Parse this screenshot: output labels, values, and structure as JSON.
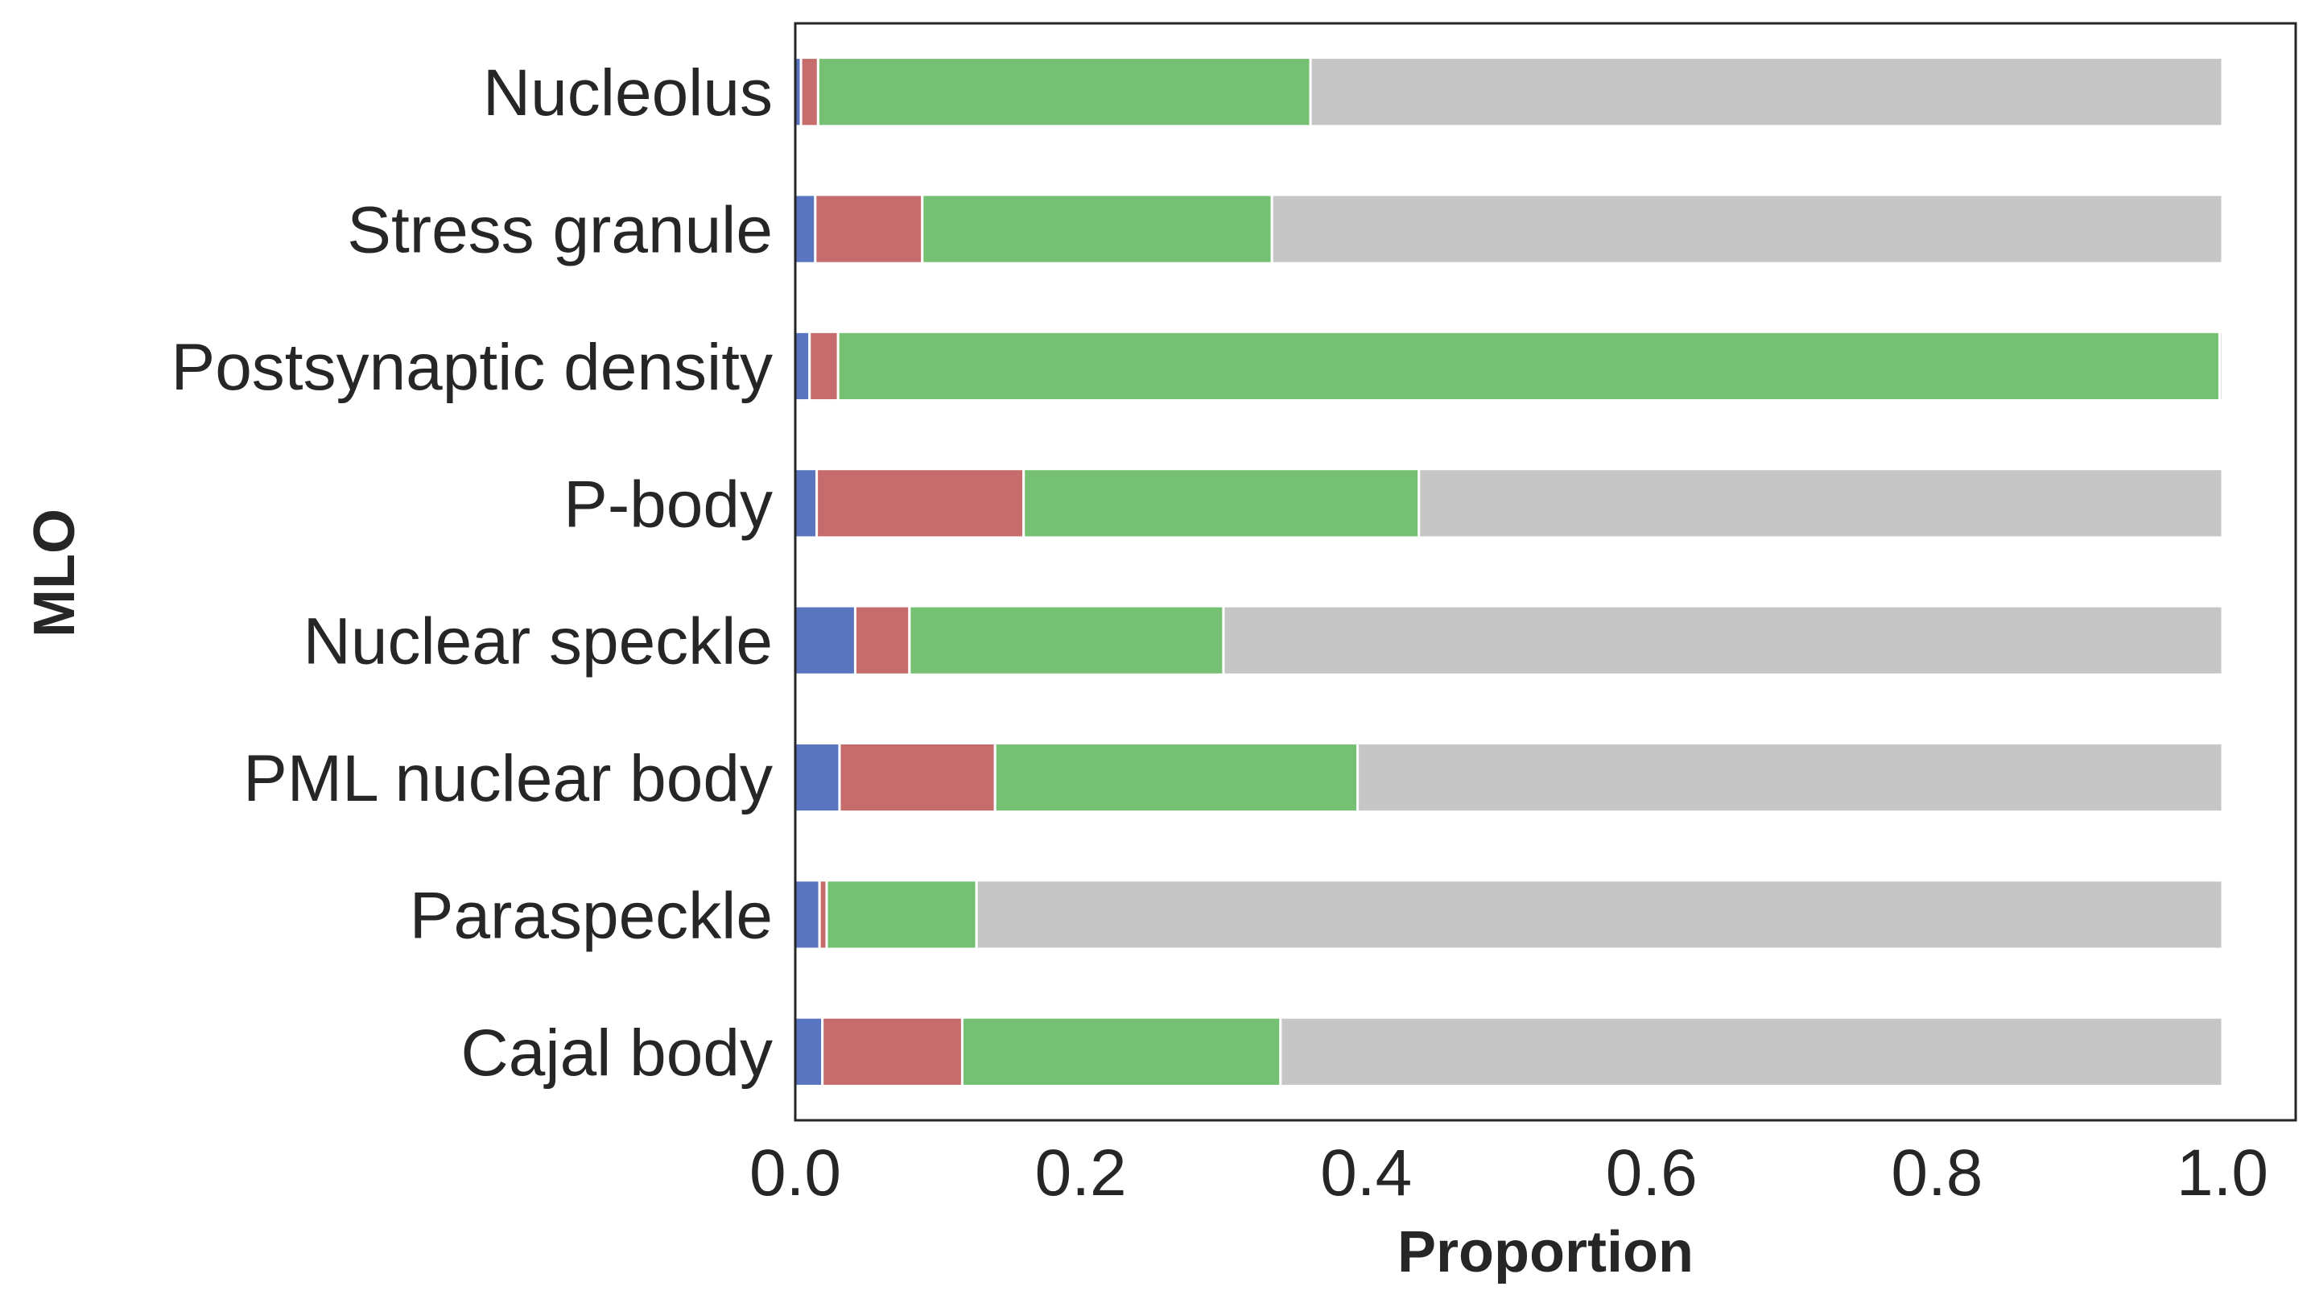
{
  "chart_data": {
    "type": "bar",
    "orientation": "horizontal",
    "stacked": true,
    "title": "",
    "xlabel": "Proportion",
    "ylabel": "MLO",
    "xlim": [
      0,
      1.05
    ],
    "xticks": [
      "0.0",
      "0.2",
      "0.4",
      "0.6",
      "0.8",
      "1.0"
    ],
    "grid": false,
    "legend": "none",
    "categories": [
      "Nucleolus",
      "Stress granule",
      "Postsynaptic density",
      "P-body",
      "Nuclear speckle",
      "PML nuclear body",
      "Paraspeckle",
      "Cajal body"
    ],
    "series": [
      {
        "color": "#5975c0",
        "values": [
          0.004,
          0.014,
          0.01,
          0.015,
          0.042,
          0.031,
          0.017,
          0.019
        ]
      },
      {
        "color": "#c66c6c",
        "values": [
          0.012,
          0.075,
          0.02,
          0.145,
          0.038,
          0.109,
          0.005,
          0.098
        ]
      },
      {
        "color": "#75c073",
        "values": [
          0.345,
          0.245,
          0.968,
          0.277,
          0.22,
          0.254,
          0.105,
          0.223
        ]
      },
      {
        "color": "#c6c6c6",
        "values": [
          0.639,
          0.666,
          0.002,
          0.563,
          0.7,
          0.606,
          0.873,
          0.66
        ]
      }
    ]
  }
}
